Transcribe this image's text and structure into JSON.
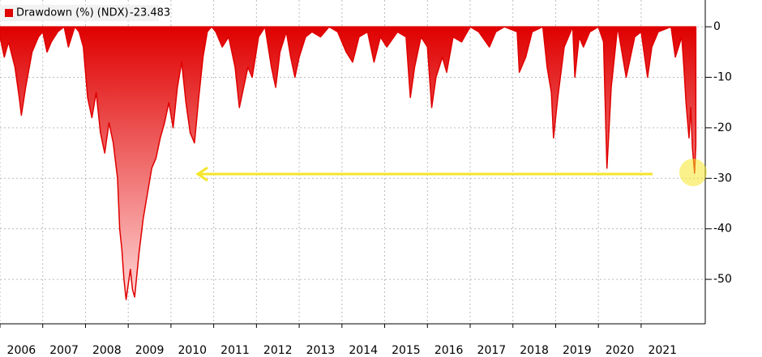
{
  "chart_data": {
    "type": "area",
    "x": [
      2006.0,
      2006.1,
      2006.2,
      2006.35,
      2006.45,
      2006.5,
      2006.6,
      2006.75,
      2006.9,
      2007.0,
      2007.1,
      2007.2,
      2007.35,
      2007.5,
      2007.6,
      2007.75,
      2007.85,
      2007.95,
      2008.05,
      2008.15,
      2008.25,
      2008.35,
      2008.45,
      2008.55,
      2008.65,
      2008.75,
      2008.8,
      2008.85,
      2008.9,
      2008.95,
      2009.05,
      2009.1,
      2009.15,
      2009.25,
      2009.35,
      2009.45,
      2009.55,
      2009.65,
      2009.75,
      2009.85,
      2009.95,
      2010.05,
      2010.15,
      2010.25,
      2010.35,
      2010.45,
      2010.55,
      2010.65,
      2010.75,
      2010.85,
      2010.95,
      2011.05,
      2011.2,
      2011.35,
      2011.5,
      2011.6,
      2011.7,
      2011.8,
      2011.9,
      2012.05,
      2012.2,
      2012.35,
      2012.45,
      2012.55,
      2012.7,
      2012.8,
      2012.9,
      2013.0,
      2013.15,
      2013.3,
      2013.5,
      2013.7,
      2013.9,
      2014.1,
      2014.25,
      2014.4,
      2014.6,
      2014.75,
      2014.9,
      2015.05,
      2015.3,
      2015.5,
      2015.6,
      2015.7,
      2015.85,
      2016.0,
      2016.1,
      2016.2,
      2016.35,
      2016.45,
      2016.6,
      2016.8,
      2017.0,
      2017.2,
      2017.45,
      2017.6,
      2017.8,
      2018.1,
      2018.15,
      2018.3,
      2018.45,
      2018.7,
      2018.8,
      2018.9,
      2018.95,
      2019.05,
      2019.2,
      2019.4,
      2019.45,
      2019.55,
      2019.65,
      2019.8,
      2020.0,
      2020.12,
      2020.2,
      2020.3,
      2020.45,
      2020.65,
      2020.75,
      2020.85,
      2021.0,
      2021.15,
      2021.25,
      2021.4,
      2021.7,
      2021.8,
      2021.95,
      2022.0,
      2022.05,
      2022.12,
      2022.16,
      2022.2,
      2022.25,
      2022.28
    ],
    "series": [
      {
        "name": "Drawdown (%) (NDX)",
        "color": "#e00000",
        "values": [
          -2,
          -6,
          -3,
          -8,
          -14,
          -17.5,
          -12,
          -5,
          -2,
          -1,
          -5,
          -3,
          -1,
          0,
          -4,
          0,
          -1,
          -4,
          -14,
          -18,
          -13,
          -21,
          -25,
          -19,
          -23,
          -30,
          -40,
          -44,
          -50,
          -54,
          -48,
          -52,
          -53.5,
          -45,
          -38,
          -33,
          -28,
          -26,
          -22,
          -19,
          -15,
          -20,
          -12,
          -7,
          -15,
          -21,
          -23,
          -14,
          -6,
          -1,
          0,
          -1,
          -4,
          -2,
          -8,
          -16,
          -12,
          -8,
          -10,
          -2,
          0,
          -8,
          -12,
          -5,
          -1,
          -6,
          -10,
          -6,
          -2,
          -1,
          -2,
          0,
          -1,
          -5,
          -7,
          -2,
          -1,
          -7,
          -2,
          -4,
          -1,
          -2,
          -14,
          -8,
          -2,
          -4,
          -16,
          -10,
          -6,
          -9,
          -2,
          -3,
          0,
          -1,
          -4,
          -1,
          0,
          -1,
          -9,
          -6,
          -1,
          0,
          -8,
          -13,
          -22,
          -14,
          -4,
          0,
          -10,
          -2,
          -4,
          -1,
          0,
          -3,
          -28,
          -12,
          0,
          -10,
          -6,
          -2,
          -1,
          -10,
          -4,
          -1,
          0,
          -6,
          -2,
          -8,
          -15,
          -22,
          -16,
          -24,
          -29,
          -23.483
        ]
      }
    ],
    "xlim": [
      2006,
      2022.5
    ],
    "ylim": [
      -58.8,
      5.3
    ],
    "xticks": [
      2006,
      2007,
      2008,
      2009,
      2010,
      2011,
      2012,
      2013,
      2014,
      2015,
      2016,
      2017,
      2018,
      2019,
      2020,
      2021
    ],
    "yticks": [
      0,
      -10,
      -20,
      -30,
      -40,
      -50
    ],
    "grid": true
  }
}
